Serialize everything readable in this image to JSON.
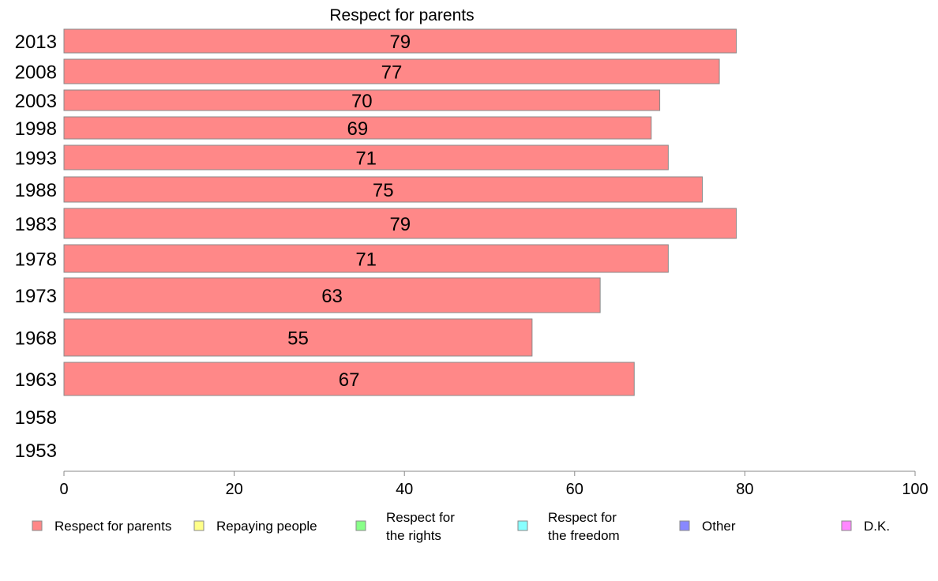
{
  "chart_data": {
    "type": "bar",
    "orientation": "horizontal",
    "title": "Respect for parents",
    "categories": [
      "2013",
      "2008",
      "2003",
      "1998",
      "1993",
      "1988",
      "1983",
      "1978",
      "1973",
      "1968",
      "1963",
      "1958",
      "1953"
    ],
    "series": [
      {
        "name": "Respect for parents",
        "values": [
          79,
          77,
          70,
          69,
          71,
          75,
          79,
          71,
          63,
          55,
          67,
          null,
          null
        ],
        "labels": [
          "79",
          "77",
          "70",
          "69",
          "71",
          "75",
          "79",
          "71",
          "63",
          "55",
          "67",
          "",
          ""
        ]
      }
    ],
    "xlim": [
      0,
      100
    ],
    "x_ticks": [
      "0",
      "20",
      "40",
      "60",
      "80",
      "100"
    ],
    "grid": false,
    "legend": {
      "placement": "bottom",
      "entries": [
        {
          "label": "Respect for parents",
          "color": "#ff8888"
        },
        {
          "label": "Repaying people",
          "color": "#ffff88"
        },
        {
          "label": "Respect for\nthe rights",
          "color": "#88ff88"
        },
        {
          "label": "Respect for\nthe freedom",
          "color": "#88ffff"
        },
        {
          "label": "Other",
          "color": "#8888ff"
        },
        {
          "label": "D.K.",
          "color": "#ff88ff"
        }
      ]
    },
    "colors": {
      "bar_fill": "#ff8888",
      "bar_stroke": "#8a8a8a",
      "axis": "#888888"
    }
  }
}
